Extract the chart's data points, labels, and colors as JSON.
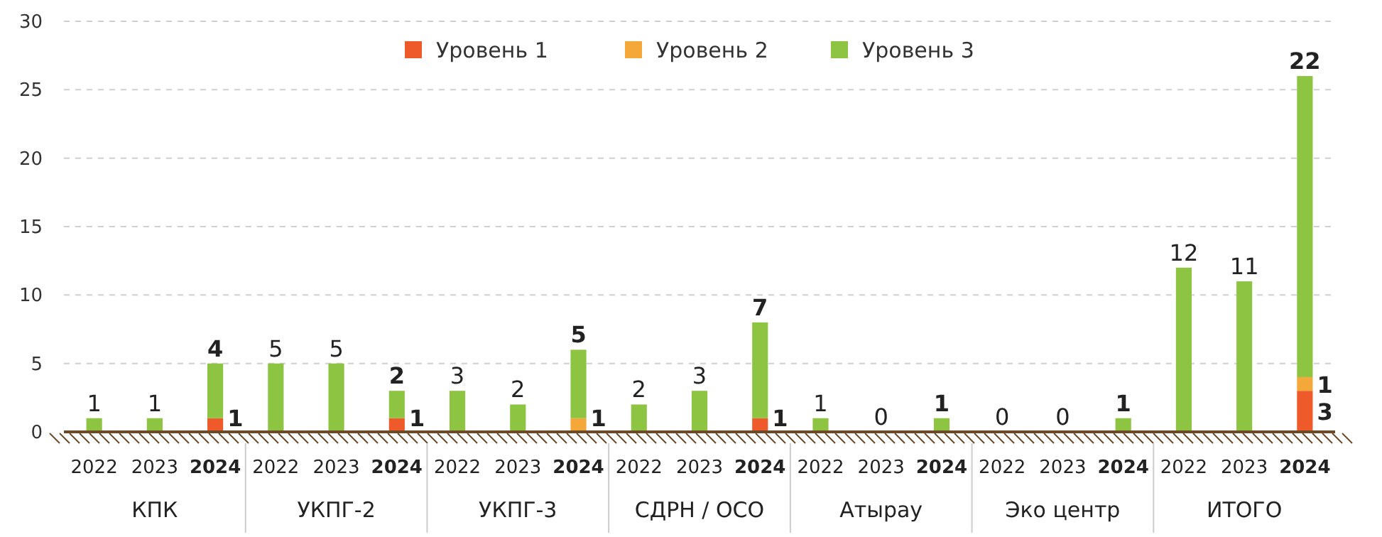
{
  "chart_data": {
    "type": "bar",
    "stacked": true,
    "categories": [
      "2022",
      "2023",
      "2024",
      "2022",
      "2023",
      "2024",
      "2022",
      "2023",
      "2024",
      "2022",
      "2023",
      "2024",
      "2022",
      "2023",
      "2024",
      "2022",
      "2023",
      "2024",
      "2022",
      "2023",
      "2024"
    ],
    "annotations": [
      "КПК",
      "УКПГ-2",
      "УКПГ-3",
      "СДРН / ОСО",
      "Атырау",
      "Эко центр",
      "ИТОГО"
    ],
    "series": [
      {
        "name": "Уровень 1",
        "color": "#ee5a2a",
        "values": [
          0,
          0,
          1,
          0,
          0,
          1,
          0,
          0,
          0,
          0,
          0,
          1,
          0,
          0,
          0,
          0,
          0,
          0,
          0,
          0,
          3
        ],
        "value_labels": [
          null,
          null,
          "1",
          null,
          null,
          "1",
          null,
          null,
          null,
          null,
          null,
          "1",
          null,
          null,
          null,
          null,
          null,
          null,
          null,
          null,
          "3"
        ]
      },
      {
        "name": "Уровень 2",
        "color": "#f5a83a",
        "values": [
          0,
          0,
          0,
          0,
          0,
          0,
          0,
          0,
          1,
          0,
          0,
          0,
          0,
          0,
          0,
          0,
          0,
          0,
          0,
          0,
          1
        ],
        "value_labels": [
          null,
          null,
          null,
          null,
          null,
          null,
          null,
          null,
          "1",
          null,
          null,
          null,
          null,
          null,
          null,
          null,
          null,
          null,
          null,
          null,
          "1"
        ]
      },
      {
        "name": "Уровень 3",
        "color": "#8dc442",
        "values": [
          1,
          1,
          4,
          5,
          5,
          2,
          3,
          2,
          5,
          2,
          3,
          7,
          1,
          0,
          1,
          0,
          0,
          1,
          12,
          11,
          22
        ],
        "value_labels": [
          "1",
          "1",
          "4",
          "5",
          "5",
          "2",
          "3",
          "2",
          "5",
          "2",
          "3",
          "7",
          "1",
          "0",
          "1",
          "0",
          "0",
          "1",
          "12",
          "11",
          "22"
        ]
      }
    ],
    "ylim": [
      0,
      30
    ],
    "yticks": [
      0,
      5,
      10,
      15,
      20,
      25,
      30
    ],
    "grid": "y",
    "legend": "top"
  }
}
